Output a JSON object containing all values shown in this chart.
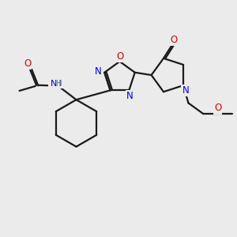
{
  "bg_color": "#ebebeb",
  "bond_color": "#1a1a1a",
  "N_color": "#0000ee",
  "O_color": "#dd0000",
  "H_color": "#6a9f6a",
  "figsize": [
    3.0,
    3.0
  ],
  "dpi": 100,
  "lw": 1.6,
  "fs": 8.0,
  "xlim": [
    0,
    10
  ],
  "ylim": [
    0,
    10
  ]
}
